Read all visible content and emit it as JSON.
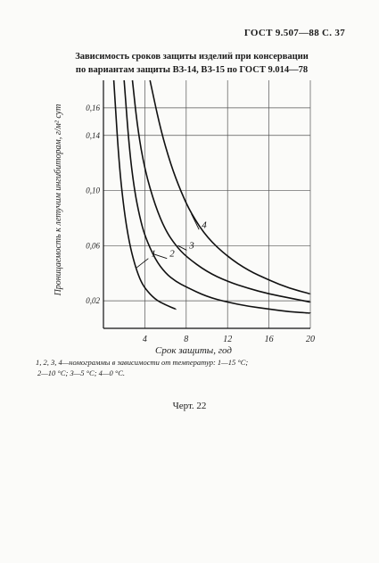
{
  "header": {
    "standard": "ГОСТ 9.507—88 С. 37"
  },
  "title": {
    "line1": "Зависимость сроков защиты изделий при консервации",
    "line2": "по вариантам защиты ВЗ-14, ВЗ-15 по ГОСТ 9.014—78"
  },
  "chart_data": {
    "type": "line",
    "xlabel": "Срок защиты, год",
    "ylabel": "Проницаемость к летучим ингибиторам, г/м² сут",
    "xlim": [
      0,
      20
    ],
    "ylim": [
      0,
      0.18
    ],
    "x_ticks": [
      4,
      8,
      12,
      16,
      20
    ],
    "y_ticks": [
      0.02,
      0.06,
      0.1,
      0.14,
      0.16
    ],
    "y_tick_labels": [
      "0,02",
      "0,06",
      "0,10",
      "0,14",
      "0,16"
    ],
    "grid": true,
    "series": [
      {
        "name": "1",
        "points": [
          [
            1,
            0.18
          ],
          [
            1.5,
            0.12
          ],
          [
            2,
            0.085
          ],
          [
            2.5,
            0.062
          ],
          [
            3,
            0.047
          ],
          [
            3.5,
            0.036
          ],
          [
            4,
            0.029
          ],
          [
            5,
            0.021
          ],
          [
            6,
            0.017
          ],
          [
            7,
            0.014
          ]
        ]
      },
      {
        "name": "2",
        "points": [
          [
            2,
            0.18
          ],
          [
            2.5,
            0.13
          ],
          [
            3,
            0.1
          ],
          [
            3.5,
            0.081
          ],
          [
            4,
            0.067
          ],
          [
            5,
            0.05
          ],
          [
            6,
            0.04
          ],
          [
            7,
            0.034
          ],
          [
            8,
            0.03
          ],
          [
            10,
            0.023
          ],
          [
            12,
            0.019
          ],
          [
            14,
            0.016
          ],
          [
            16,
            0.014
          ],
          [
            18,
            0.012
          ],
          [
            20,
            0.011
          ]
        ]
      },
      {
        "name": "3",
        "points": [
          [
            2.8,
            0.18
          ],
          [
            3.3,
            0.145
          ],
          [
            4,
            0.115
          ],
          [
            5,
            0.089
          ],
          [
            6,
            0.071
          ],
          [
            7,
            0.06
          ],
          [
            8,
            0.052
          ],
          [
            10,
            0.041
          ],
          [
            12,
            0.034
          ],
          [
            14,
            0.029
          ],
          [
            16,
            0.025
          ],
          [
            18,
            0.022
          ],
          [
            20,
            0.019
          ]
        ]
      },
      {
        "name": "4",
        "points": [
          [
            4.5,
            0.18
          ],
          [
            5.5,
            0.145
          ],
          [
            6.5,
            0.119
          ],
          [
            7.5,
            0.099
          ],
          [
            8.5,
            0.083
          ],
          [
            10,
            0.066
          ],
          [
            12,
            0.052
          ],
          [
            14,
            0.042
          ],
          [
            16,
            0.035
          ],
          [
            18,
            0.029
          ],
          [
            20,
            0.025
          ]
        ]
      }
    ]
  },
  "caption": {
    "line1": "1, 2, 3, 4—номограммы в зависимости от температур: 1—15 °С;",
    "line2": "2—10 °С; 3—5 °С; 4—0 °С."
  },
  "figure_label": "Черт. 22"
}
